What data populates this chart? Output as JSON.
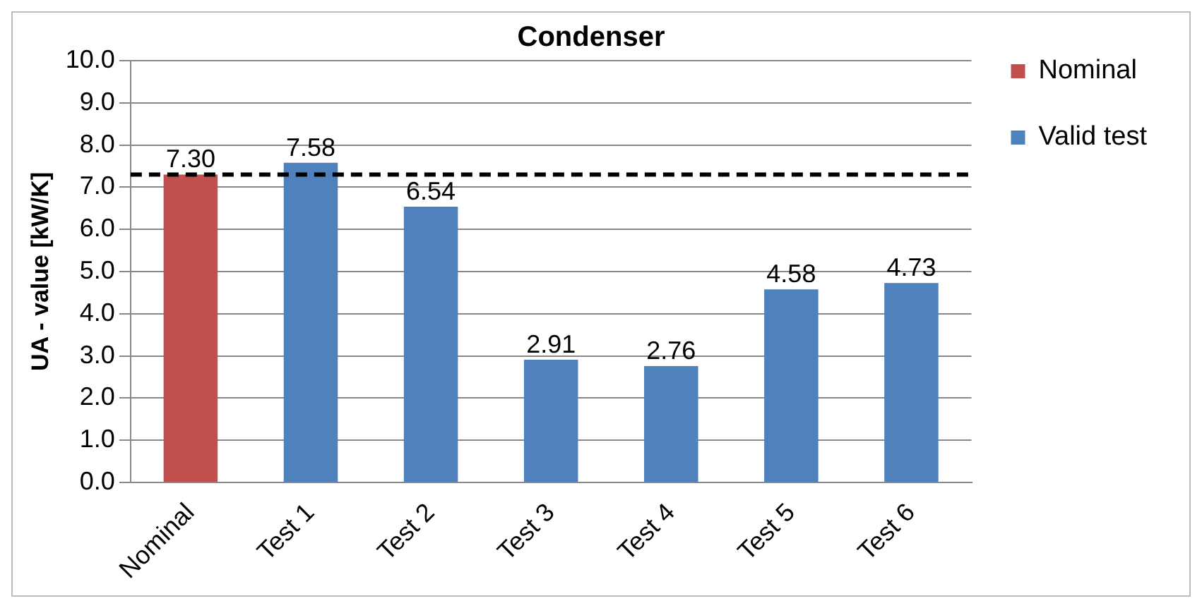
{
  "chart_data": {
    "type": "bar",
    "title": "Condenser",
    "ylabel": "UA - value [kW/K]",
    "categories": [
      "Nominal",
      "Test 1",
      "Test 2",
      "Test 3",
      "Test 4",
      "Test 5",
      "Test 6"
    ],
    "series": [
      {
        "name": "Nominal",
        "color": "#c0504d",
        "values": [
          7.3,
          null,
          null,
          null,
          null,
          null,
          null
        ],
        "value_labels": [
          "7.30",
          null,
          null,
          null,
          null,
          null,
          null
        ]
      },
      {
        "name": "Valid test",
        "color": "#4f81bd",
        "values": [
          null,
          7.58,
          6.54,
          2.91,
          2.76,
          4.58,
          4.73
        ],
        "value_labels": [
          null,
          "7.58",
          "6.54",
          "2.91",
          "2.76",
          "4.58",
          "4.73"
        ]
      }
    ],
    "ylim": [
      0,
      10
    ],
    "yticks": [
      {
        "value": 0,
        "label": "0.0"
      },
      {
        "value": 1,
        "label": "1.0"
      },
      {
        "value": 2,
        "label": "2.0"
      },
      {
        "value": 3,
        "label": "3.0"
      },
      {
        "value": 4,
        "label": "4.0"
      },
      {
        "value": 5,
        "label": "5.0"
      },
      {
        "value": 6,
        "label": "6.0"
      },
      {
        "value": 7,
        "label": "7.0"
      },
      {
        "value": 8,
        "label": "8.0"
      },
      {
        "value": 9,
        "label": "9.0"
      },
      {
        "value": 10,
        "label": "10.0"
      }
    ],
    "ref_lines": [
      {
        "axis": "y",
        "value": 7.3,
        "color": "#000000",
        "line_style": "dashed"
      }
    ],
    "grid": "y",
    "legend": "right"
  }
}
